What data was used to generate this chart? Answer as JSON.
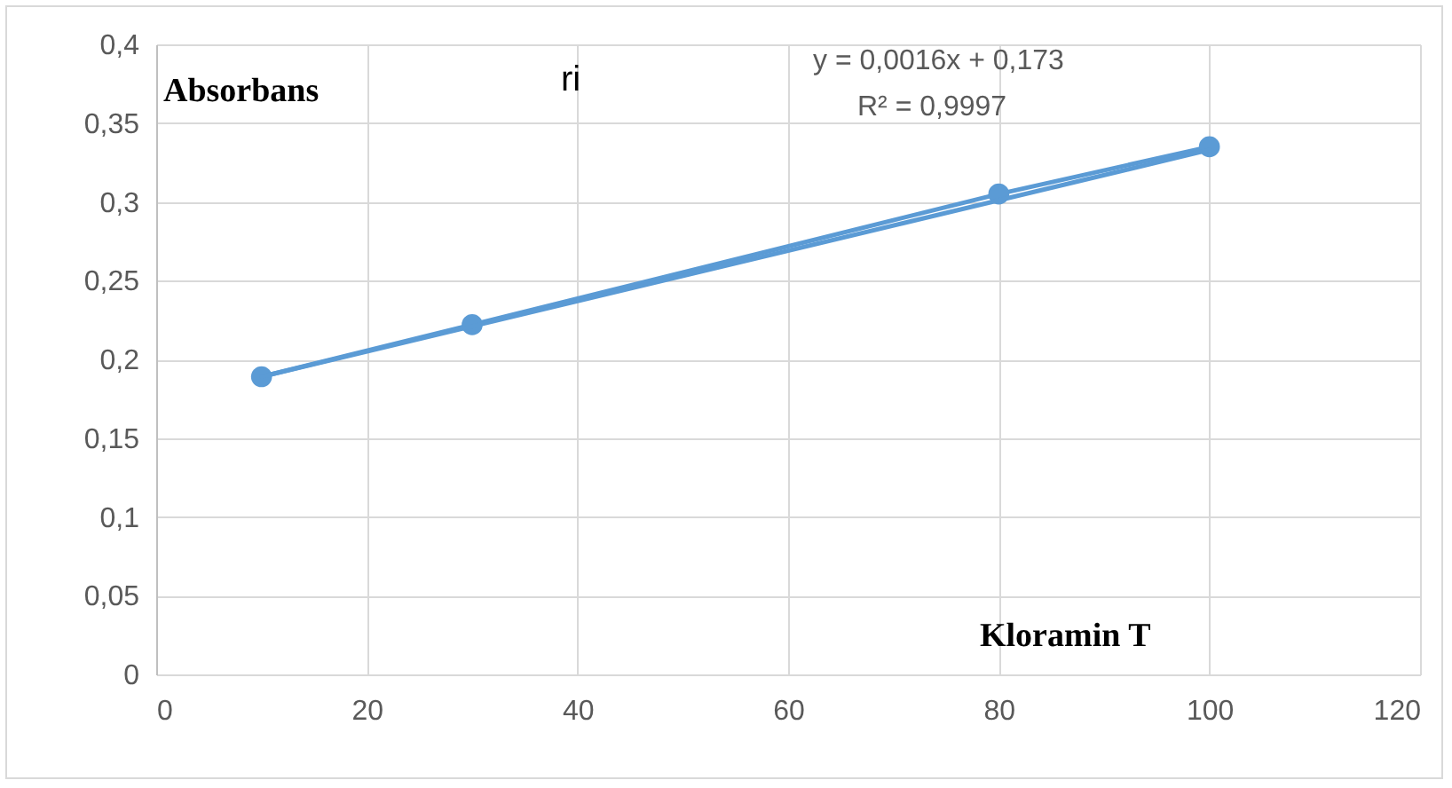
{
  "chart_data": {
    "type": "line",
    "xlabel": "Kloramin T",
    "ylabel": "Absorbans",
    "annotations": [
      "y = 0,0016x + 0,173",
      "R² = 0,9997",
      "ri"
    ],
    "x": [
      10,
      30,
      80,
      100
    ],
    "series": [
      {
        "color": "#5b9bd5",
        "values": [
          0.189,
          0.222,
          0.305,
          0.335
        ],
        "marker": "circle"
      },
      {
        "type": "line",
        "color": "#5b9bd5",
        "x": [
          10,
          100
        ],
        "values": [
          0.189,
          0.333
        ],
        "marker": "none"
      }
    ],
    "xlim": [
      0,
      120
    ],
    "xticks": [
      0,
      20,
      40,
      60,
      80,
      100,
      120
    ],
    "ylim": [
      0,
      0.4
    ],
    "yticks": [
      {
        "value": 0,
        "label": "0"
      },
      {
        "value": 0.05,
        "label": "0,05"
      },
      {
        "value": 0.1,
        "label": "0,1"
      },
      {
        "value": 0.15,
        "label": "0,15"
      },
      {
        "value": 0.2,
        "label": "0,2"
      },
      {
        "value": 0.25,
        "label": "0,25"
      },
      {
        "value": 0.3,
        "label": "0,3"
      },
      {
        "value": 0.35,
        "label": "0,35"
      },
      {
        "value": 0.4,
        "label": "0,4"
      }
    ],
    "grid": true
  }
}
